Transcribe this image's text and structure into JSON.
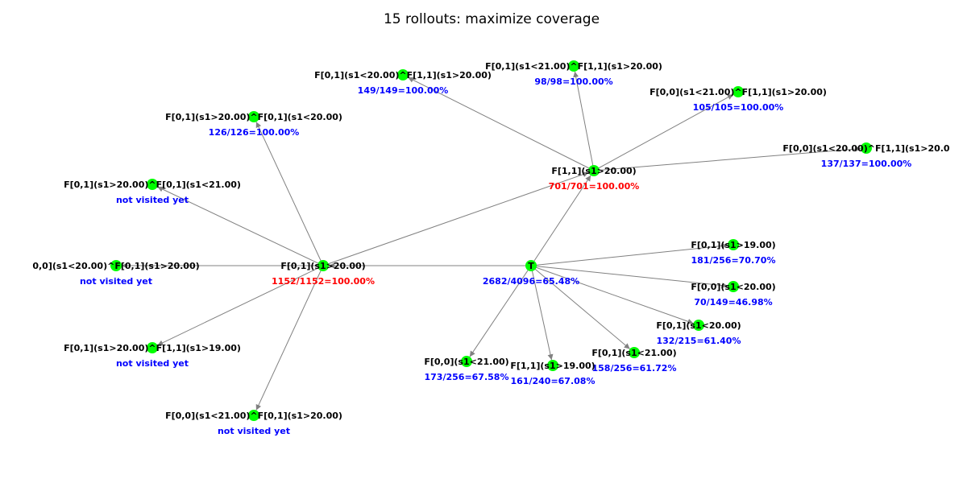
{
  "title": "15 rollouts: maximize coverage",
  "colors": {
    "node": "#00ff00",
    "edge": "#808080",
    "stat_highlight": "#ff0000",
    "stat_normal": "#0000ff",
    "label": "#000000"
  },
  "nodes": [
    {
      "id": "T",
      "label": "T",
      "stat": "2682/4096=65.48%",
      "highlight": false
    },
    {
      "id": "a",
      "label": "F[0,1](s1>20.00)",
      "stat": "1152/1152=100.00%",
      "highlight": true
    },
    {
      "id": "b",
      "label": "F[1,1](s1>20.00)",
      "stat": "701/701=100.00%",
      "highlight": true
    },
    {
      "id": "a1",
      "label": "F[0,1](s1>20.00)^F[0,1](s1<20.00)",
      "stat": "126/126=100.00%",
      "highlight": false
    },
    {
      "id": "a2",
      "label": "F[0,1](s1>20.00)^F[0,1](s1<21.00)",
      "stat": "not visited yet",
      "highlight": false
    },
    {
      "id": "a3",
      "label": "0,0](s1<20.00)^F[0,1](s1>20.00)",
      "stat": "not visited yet",
      "highlight": false
    },
    {
      "id": "a4",
      "label": "F[0,1](s1>20.00)^F[1,1](s1>19.00)",
      "stat": "not visited yet",
      "highlight": false
    },
    {
      "id": "a5",
      "label": "F[0,0](s1<21.00)^F[0,1](s1>20.00)",
      "stat": "not visited yet",
      "highlight": false
    },
    {
      "id": "b1",
      "label": "F[0,1](s1<20.00)^F[1,1](s1>20.00)",
      "stat": "149/149=100.00%",
      "highlight": false
    },
    {
      "id": "b2",
      "label": "F[0,1](s1<21.00)^F[1,1](s1>20.00)",
      "stat": "98/98=100.00%",
      "highlight": false
    },
    {
      "id": "b3",
      "label": "F[0,0](s1<21.00)^F[1,1](s1>20.00)",
      "stat": "105/105=100.00%",
      "highlight": false
    },
    {
      "id": "b4",
      "label": "F[0,0](s1<20.00)^F[1,1](s1>20.0",
      "stat": "137/137=100.00%",
      "highlight": false
    },
    {
      "id": "c1",
      "label": "F[0,1](s1>19.00)",
      "stat": "181/256=70.70%",
      "highlight": false
    },
    {
      "id": "c2",
      "label": "F[0,0](s1<20.00)",
      "stat": "70/149=46.98%",
      "highlight": false
    },
    {
      "id": "c3",
      "label": "F[0,1](s1<20.00)",
      "stat": "132/215=61.40%",
      "highlight": false
    },
    {
      "id": "c4",
      "label": "F[0,1](s1<21.00)",
      "stat": "158/256=61.72%",
      "highlight": false
    },
    {
      "id": "c5",
      "label": "F[1,1](s1>19.00)",
      "stat": "161/240=67.08%",
      "highlight": false
    },
    {
      "id": "c6",
      "label": "F[0,0](s1<21.00)",
      "stat": "173/256=67.58%",
      "highlight": false
    }
  ],
  "edges": [
    {
      "from": "T",
      "to": "a"
    },
    {
      "from": "T",
      "to": "b"
    },
    {
      "from": "T",
      "to": "c1"
    },
    {
      "from": "T",
      "to": "c2"
    },
    {
      "from": "T",
      "to": "c3"
    },
    {
      "from": "T",
      "to": "c4"
    },
    {
      "from": "T",
      "to": "c5"
    },
    {
      "from": "T",
      "to": "c6"
    },
    {
      "from": "a",
      "to": "a1"
    },
    {
      "from": "a",
      "to": "a2"
    },
    {
      "from": "a",
      "to": "a3"
    },
    {
      "from": "a",
      "to": "a4"
    },
    {
      "from": "a",
      "to": "a5"
    },
    {
      "from": "a",
      "to": "b"
    },
    {
      "from": "b",
      "to": "b1"
    },
    {
      "from": "b",
      "to": "b2"
    },
    {
      "from": "b",
      "to": "b3"
    },
    {
      "from": "b",
      "to": "b4"
    }
  ]
}
